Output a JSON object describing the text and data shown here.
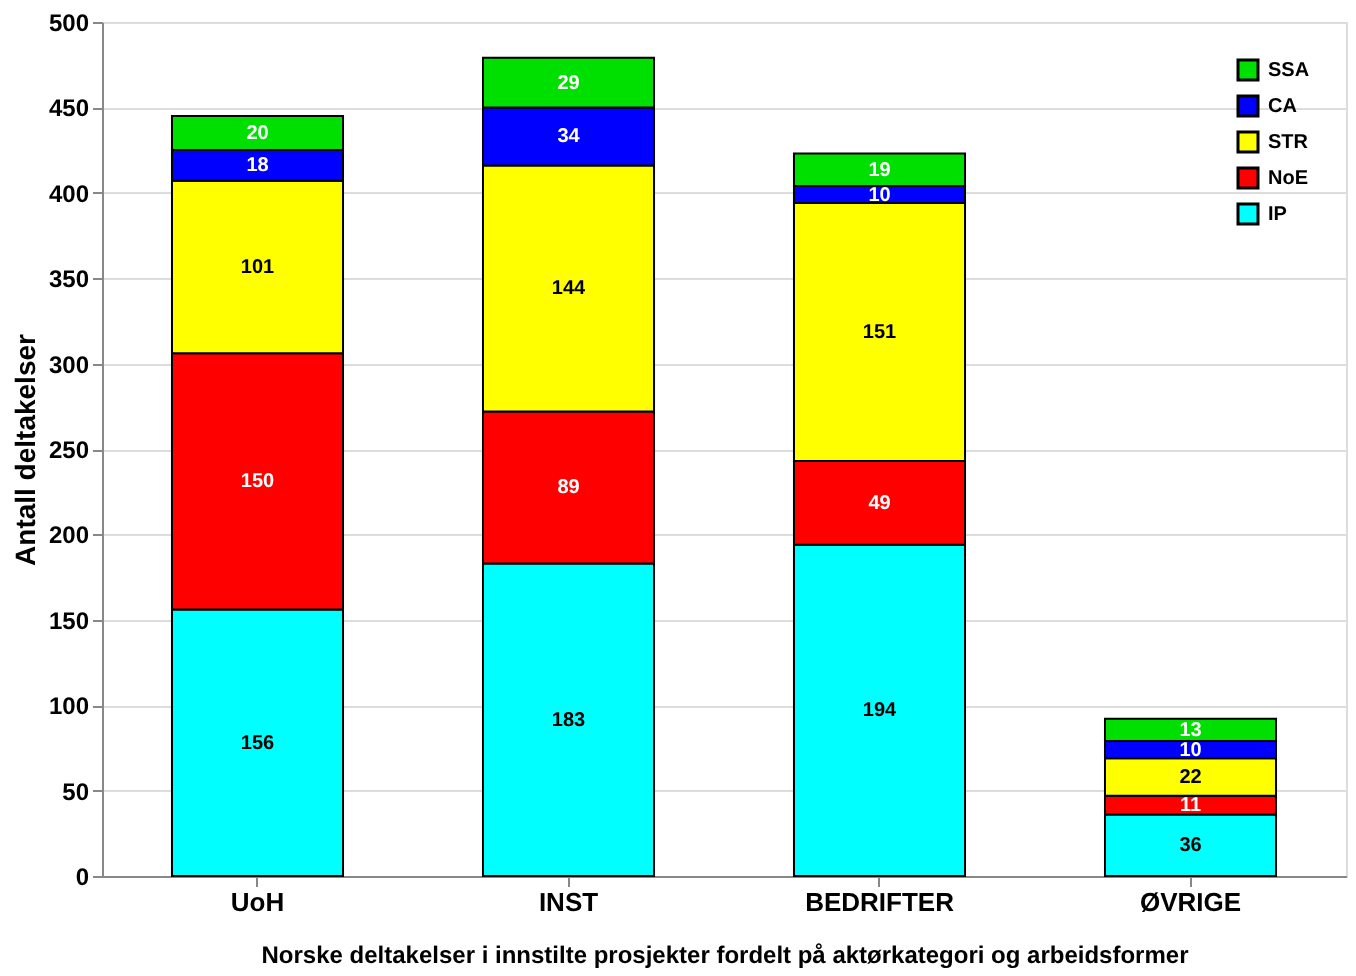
{
  "chart_data": {
    "type": "bar",
    "stacked": true,
    "xlabel": "Norske deltakelser i innstilte prosjekter fordelt på aktørkategori og arbeidsformer",
    "ylabel": "Antall deltakelser",
    "categories": [
      "UoH",
      "INST",
      "BEDRIFTER",
      "ØVRIGE"
    ],
    "series": [
      {
        "name": "IP",
        "color": "#00ffff",
        "values": [
          156,
          183,
          194,
          36
        ]
      },
      {
        "name": "NoE",
        "color": "#ff0000",
        "values": [
          150,
          89,
          49,
          11
        ]
      },
      {
        "name": "STR",
        "color": "#ffff00",
        "values": [
          101,
          144,
          151,
          22
        ]
      },
      {
        "name": "CA",
        "color": "#0000ff",
        "values": [
          18,
          34,
          10,
          10
        ]
      },
      {
        "name": "SSA",
        "color": "#00e000",
        "values": [
          20,
          29,
          19,
          13
        ]
      }
    ],
    "ylim": [
      0,
      500
    ],
    "yticks": [
      0,
      50,
      100,
      150,
      200,
      250,
      300,
      350,
      400,
      450,
      500
    ],
    "grid": "y",
    "legend": "top right",
    "data_labels": true
  }
}
